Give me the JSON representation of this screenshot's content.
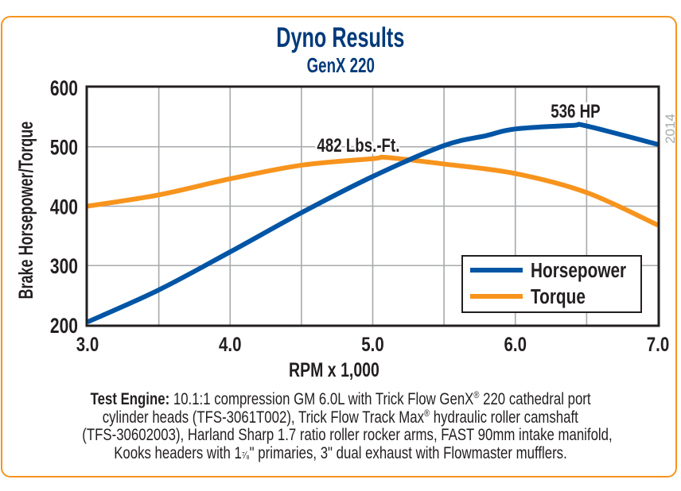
{
  "year_mark": "2014",
  "notes": {
    "lead": "Test Engine:",
    "line1": " 10.1:1 compression GM 6.0L with Trick Flow GenX",
    "reg": "®",
    "line1b": " 220 cathedral port",
    "line2a": "cylinder heads (TFS-3061T002), Trick Flow Track Max",
    "line2b": " hydraulic roller camshaft",
    "line3": "(TFS-30602003), Harland Sharp 1.7 ratio roller rocker arms, FAST 90mm intake manifold,",
    "line4a": "Kooks headers with 1",
    "line4frac": "⁷⁄₈",
    "line4b": "\" primaries, 3\" dual exhaust with Flowmaster mufflers."
  },
  "colors": {
    "horsepower": "#0055a5",
    "torque": "#f7941d",
    "title": "#003a7a",
    "frame": "#f7941d",
    "grid": "#a7a9ac",
    "axis": "#231f20"
  },
  "chart_data": {
    "type": "line",
    "title": "Dyno Results",
    "subtitle": "GenX 220",
    "xlabel": "RPM x 1,000",
    "ylabel": "Brake Horsepower/Torque",
    "xlim": [
      3.0,
      7.0
    ],
    "ylim": [
      200,
      600
    ],
    "grid": true,
    "x_ticks": [
      3.0,
      3.5,
      4.0,
      4.5,
      5.0,
      5.5,
      6.0,
      6.5,
      7.0
    ],
    "x_tick_labels": [
      "3.0",
      "4.0",
      "5.0",
      "6.0",
      "7.0"
    ],
    "x_tick_label_values": [
      3.0,
      4.0,
      5.0,
      6.0,
      7.0
    ],
    "y_ticks": [
      200,
      300,
      400,
      500,
      600
    ],
    "y_tick_labels": [
      "200",
      "300",
      "400",
      "500",
      "600"
    ],
    "legend_position": "bottom-right",
    "series": [
      {
        "name": "Horsepower",
        "color": "#0055a5",
        "x": [
          3.0,
          3.5,
          4.0,
          4.5,
          5.0,
          5.5,
          5.8,
          6.0,
          6.4,
          6.5,
          7.0
        ],
        "values": [
          205,
          259,
          323,
          389,
          450,
          502,
          519,
          530,
          536,
          535,
          504
        ]
      },
      {
        "name": "Torque",
        "color": "#f7941d",
        "x": [
          3.0,
          3.5,
          4.0,
          4.5,
          5.0,
          5.1,
          5.5,
          6.0,
          6.5,
          7.0
        ],
        "values": [
          400,
          419,
          446,
          469,
          480,
          482,
          471,
          455,
          423,
          368
        ]
      }
    ],
    "annotations": [
      {
        "text": "536 HP",
        "x": 6.4,
        "y": 536,
        "series": "Horsepower"
      },
      {
        "text": "482 Lbs.-Ft.",
        "x": 5.1,
        "y": 482,
        "series": "Torque"
      }
    ]
  }
}
